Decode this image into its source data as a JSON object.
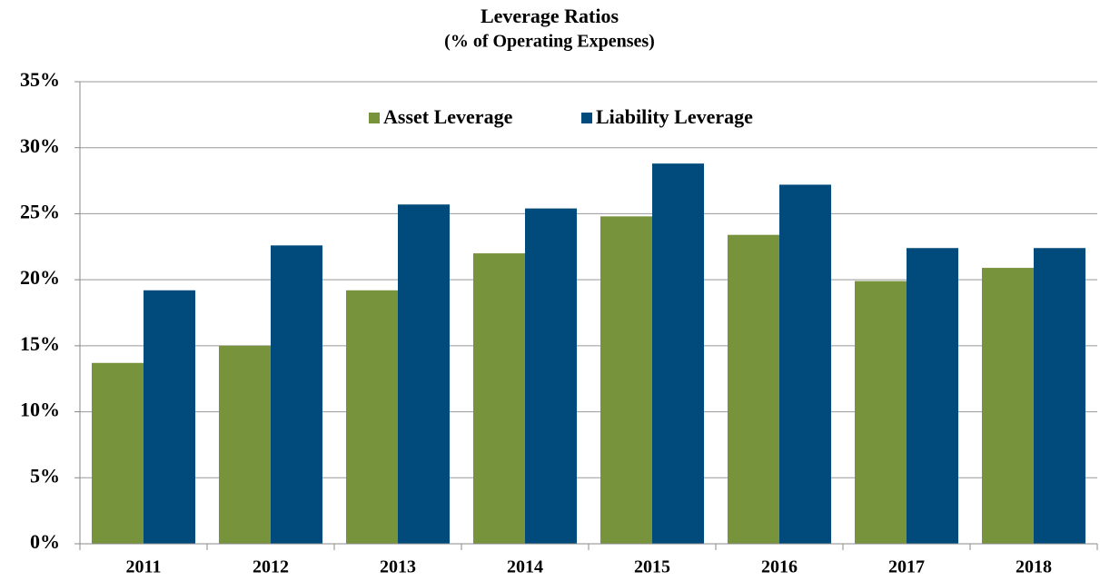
{
  "chart_data": {
    "type": "bar",
    "title": "Leverage Ratios",
    "subtitle": "(% of Operating Expenses)",
    "categories": [
      "2011",
      "2012",
      "2013",
      "2014",
      "2015",
      "2016",
      "2017",
      "2018"
    ],
    "series": [
      {
        "name": "Asset Leverage",
        "color": "#77933c",
        "values": [
          13.7,
          15.0,
          19.2,
          22.0,
          24.8,
          23.4,
          19.9,
          20.9
        ]
      },
      {
        "name": "Liability Leverage",
        "color": "#004a7c",
        "values": [
          19.2,
          22.6,
          25.7,
          25.4,
          28.8,
          27.2,
          22.4,
          22.4
        ]
      }
    ],
    "ylim": [
      0,
      35
    ],
    "yticks": [
      {
        "value": 0,
        "label": "0%"
      },
      {
        "value": 5,
        "label": "5%"
      },
      {
        "value": 10,
        "label": "10%"
      },
      {
        "value": 15,
        "label": "15%"
      },
      {
        "value": 20,
        "label": "20%"
      },
      {
        "value": 25,
        "label": "25%"
      },
      {
        "value": 30,
        "label": "30%"
      },
      {
        "value": 35,
        "label": "35%"
      }
    ],
    "grid": true,
    "legend": "top"
  }
}
